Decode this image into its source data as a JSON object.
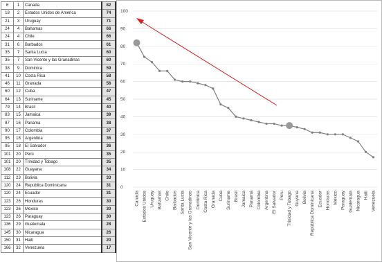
{
  "table": {
    "rows": [
      [
        6,
        1,
        "Canada",
        82
      ],
      [
        18,
        2,
        "Estados Unidos de America",
        74
      ],
      [
        21,
        3,
        "Uruguay",
        71
      ],
      [
        24,
        4,
        "Bahamas",
        66
      ],
      [
        24,
        4,
        "Chile",
        66
      ],
      [
        31,
        6,
        "Barbados",
        61
      ],
      [
        35,
        7,
        "Santa Lucia",
        60
      ],
      [
        35,
        7,
        "San Vicente y las Granadinas",
        60
      ],
      [
        38,
        9,
        "Dominica",
        59
      ],
      [
        41,
        10,
        "Costa Rica",
        58
      ],
      [
        46,
        11,
        "Granada",
        56
      ],
      [
        60,
        12,
        "Cuba",
        47
      ],
      [
        64,
        13,
        "Suriname",
        45
      ],
      [
        79,
        14,
        "Brasil",
        40
      ],
      [
        83,
        15,
        "Jamaica",
        39
      ],
      [
        87,
        16,
        "Panama",
        38
      ],
      [
        90,
        17,
        "Colombia",
        37
      ],
      [
        95,
        18,
        "Argentina",
        36
      ],
      [
        95,
        18,
        "El Salvador",
        36
      ],
      [
        101,
        20,
        "Perú",
        35
      ],
      [
        101,
        20,
        "Trinidad y Tobago",
        35
      ],
      [
        108,
        22,
        "Guayana",
        34
      ],
      [
        112,
        23,
        "Bolivia",
        33
      ],
      [
        120,
        24,
        "Republica Dominicana",
        31
      ],
      [
        120,
        24,
        "Ecuador",
        31
      ],
      [
        123,
        26,
        "Honduras",
        30
      ],
      [
        123,
        26,
        "Mexico",
        30
      ],
      [
        123,
        26,
        "Paraguay",
        30
      ],
      [
        136,
        29,
        "Guatemala",
        28
      ],
      [
        145,
        30,
        "Nicaragua",
        26
      ],
      [
        150,
        31,
        "Haiti",
        20
      ],
      [
        166,
        32,
        "Venezuela",
        17
      ]
    ]
  },
  "chart_data": {
    "type": "line",
    "categories": [
      "Canada",
      "Estados Unidos",
      "Uruguay",
      "Bahamas",
      "Chile",
      "Barbados",
      "Santa Lucia",
      "San Vicente y las Granadinas",
      "Dominica",
      "Costa Rica",
      "Granada",
      "Cuba",
      "Suriname",
      "Brasil",
      "Jamaica",
      "Panamá",
      "Colombia",
      "Argentina",
      "El Salvador",
      "Peru",
      "Trinidad y Tobago",
      "Guyana",
      "Bolivia",
      "República Dominicana",
      "Ecuador",
      "Honduras",
      "México",
      "Paraguay",
      "Guatemala",
      "Nicaragua",
      "Haití",
      "Venezuela"
    ],
    "values": [
      82,
      74,
      71,
      66,
      66,
      61,
      60,
      60,
      59,
      58,
      56,
      47,
      45,
      40,
      39,
      38,
      37,
      36,
      36,
      35,
      35,
      34,
      33,
      31,
      31,
      30,
      30,
      30,
      28,
      26,
      20,
      17
    ],
    "color": "#808080",
    "highlight": [
      0,
      20
    ],
    "ylim": [
      0,
      100
    ],
    "yticks": [
      0,
      10,
      20,
      30,
      40,
      50,
      60,
      70,
      80,
      90,
      100
    ],
    "grid": true
  }
}
